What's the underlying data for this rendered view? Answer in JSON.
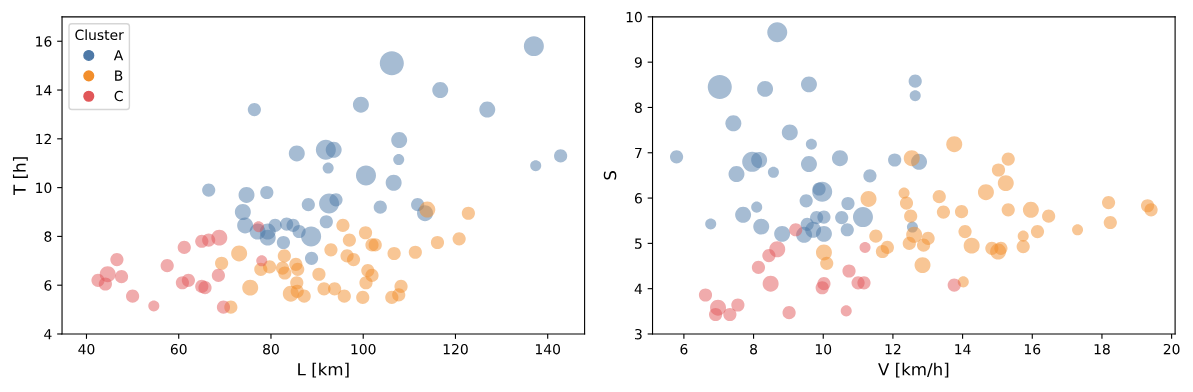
{
  "chart_data": [
    {
      "type": "bubble",
      "xlabel": "L [km]",
      "ylabel": "T [h]",
      "legend_title": "Cluster",
      "legend": "top left",
      "grid": false,
      "xlim": [
        34.7,
        148
      ],
      "xticks": [
        40,
        60,
        80,
        100,
        120,
        140
      ],
      "ylim": [
        4,
        17
      ],
      "yticks": [
        4,
        6,
        8,
        10,
        12,
        14,
        16
      ],
      "series": [
        {
          "name": "A",
          "color": "#4e79a7",
          "x": [
            137,
            106.2,
            116.7,
            126.9,
            99.5,
            76.4,
            107.8,
            91.9,
            93.6,
            85.6,
            92.4,
            107.7,
            142.8,
            137.4,
            100.6,
            106.6,
            66.5,
            79.1,
            74.7,
            73.9,
            74.4,
            77.1,
            79.3,
            79.3,
            80.9,
            83.4,
            84.8,
            86.1,
            88.7,
            82.7,
            88.8,
            88.1,
            92.6,
            94.1,
            103.7,
            111.8,
            113.4,
            92
          ],
          "values": [
            15.8,
            15.1,
            14.0,
            13.2,
            13.4,
            13.2,
            11.95,
            11.55,
            11.55,
            11.4,
            10.8,
            11.15,
            11.3,
            10.9,
            10.5,
            10.2,
            9.9,
            9.8,
            9.7,
            9.0,
            8.45,
            8.2,
            8.2,
            7.95,
            8.45,
            8.5,
            8.45,
            8.2,
            8.0,
            7.75,
            7.1,
            9.3,
            9.35,
            9.5,
            9.2,
            9.3,
            8.95,
            8.6
          ],
          "sizes": [
            0.69,
            1,
            0.44,
            0.44,
            0.44,
            0.3,
            0.44,
            0.69,
            0.44,
            0.44,
            0.21,
            0.21,
            0.3,
            0.21,
            0.69,
            0.44,
            0.3,
            0.3,
            0.44,
            0.44,
            0.44,
            0.44,
            0.44,
            0.44,
            0.3,
            0.3,
            0.3,
            0.3,
            0.69,
            0.3,
            0.3,
            0.3,
            0.69,
            0.3,
            0.3,
            0.3,
            0.44,
            0.3
          ]
        },
        {
          "name": "B",
          "color": "#f28e2b",
          "x": [
            71.3,
            69.3,
            73.1,
            75.5,
            77.8,
            79.7,
            82.9,
            82.5,
            83.0,
            85.4,
            85.8,
            85.6,
            84.3,
            85.7,
            87.2,
            90.4,
            91.5,
            93,
            95.6,
            97,
            96.5,
            97.9,
            100.5,
            101.9,
            102.6,
            106.7,
            111.3,
            116.1,
            120.8,
            122.8,
            113.9,
            101,
            101.9,
            100.6,
            108.2,
            107.7,
            106.2,
            99.9,
            95.9,
            93.8
          ],
          "values": [
            5.1,
            6.9,
            7.3,
            5.9,
            6.65,
            6.75,
            7.2,
            6.7,
            6.5,
            6.85,
            6.65,
            6.1,
            5.65,
            5.75,
            5.55,
            6.45,
            5.85,
            7.45,
            8.45,
            7.85,
            7.2,
            7.05,
            8.15,
            7.65,
            7.65,
            7.3,
            7.35,
            7.75,
            7.9,
            8.95,
            9.1,
            6.6,
            6.4,
            6.1,
            5.95,
            5.6,
            5.5,
            5.5,
            5.55,
            5.85
          ],
          "sizes": [
            0.3,
            0.3,
            0.44,
            0.44,
            0.3,
            0.3,
            0.3,
            0.3,
            0.3,
            0.3,
            0.3,
            0.3,
            0.44,
            0.3,
            0.3,
            0.3,
            0.3,
            0.3,
            0.3,
            0.3,
            0.3,
            0.3,
            0.3,
            0.3,
            0.3,
            0.3,
            0.3,
            0.3,
            0.3,
            0.3,
            0.44,
            0.3,
            0.3,
            0.3,
            0.3,
            0.3,
            0.3,
            0.3,
            0.3,
            0.3
          ]
        },
        {
          "name": "C",
          "color": "#e15759",
          "x": [
            46.6,
            42.5,
            44.1,
            44.6,
            47.6,
            50.0,
            54.6,
            57.5,
            61.2,
            60.8,
            62.1,
            65.0,
            66.5,
            68.8,
            65.0,
            65.7,
            68.6,
            69.7,
            78.0,
            77.3
          ],
          "values": [
            7.05,
            6.2,
            6.05,
            6.45,
            6.35,
            5.55,
            5.15,
            6.8,
            7.55,
            6.1,
            6.2,
            7.8,
            7.85,
            7.95,
            5.95,
            5.9,
            6.4,
            5.1,
            7.0,
            8.4
          ],
          "sizes": [
            0.3,
            0.3,
            0.3,
            0.44,
            0.3,
            0.3,
            0.21,
            0.3,
            0.3,
            0.3,
            0.3,
            0.3,
            0.3,
            0.44,
            0.3,
            0.3,
            0.3,
            0.3,
            0.21,
            0.21
          ]
        }
      ]
    },
    {
      "type": "bubble",
      "xlabel": "V [km/h]",
      "ylabel": "S",
      "grid": false,
      "xlim": [
        5.1,
        20.1
      ],
      "xticks": [
        6,
        8,
        10,
        12,
        14,
        16,
        18,
        20
      ],
      "ylim": [
        3,
        10
      ],
      "yticks": [
        3,
        4,
        5,
        6,
        7,
        8,
        9,
        10
      ],
      "series": [
        {
          "color": "#4e79a7",
          "x": [
            8.68,
            7.03,
            8.33,
            9.59,
            12.64,
            12.64,
            7.42,
            9.04,
            9.66,
            5.79,
            7.96,
            8.16,
            9.59,
            10.48,
            8.57,
            7.51,
            11.34,
            12.05,
            12.75,
            9.97,
            9.88,
            9.51,
            10.71,
            8.09,
            6.77,
            7.7,
            8.22,
            8.82,
            9.54,
            9.81,
            10.02,
            10.53,
            11.14,
            10.69,
            9.45,
            9.71,
            10.02,
            12.56
          ],
          "values": [
            9.66,
            8.45,
            8.41,
            8.51,
            8.58,
            8.26,
            7.65,
            7.45,
            7.19,
            6.91,
            6.8,
            6.84,
            6.75,
            6.88,
            6.57,
            6.53,
            6.49,
            6.84,
            6.8,
            6.14,
            6.2,
            5.94,
            5.88,
            5.8,
            5.43,
            5.63,
            5.37,
            5.21,
            5.42,
            5.57,
            5.58,
            5.57,
            5.58,
            5.3,
            5.19,
            5.3,
            5.21,
            5.36
          ],
          "sizes": [
            0.69,
            1,
            0.44,
            0.44,
            0.3,
            0.21,
            0.44,
            0.44,
            0.21,
            0.3,
            0.69,
            0.44,
            0.44,
            0.44,
            0.21,
            0.44,
            0.3,
            0.3,
            0.44,
            0.69,
            0.3,
            0.3,
            0.3,
            0.21,
            0.21,
            0.44,
            0.44,
            0.44,
            0.3,
            0.3,
            0.3,
            0.3,
            0.69,
            0.3,
            0.44,
            0.44,
            0.44,
            0.21
          ]
        },
        {
          "color": "#f28e2b",
          "x": [
            10.02,
            10.1,
            11.3,
            11.51,
            11.7,
            11.84,
            12.32,
            12.39,
            12.51,
            12.61,
            12.47,
            12.88,
            13.01,
            12.54,
            12.85,
            13.33,
            13.45,
            13.76,
            15.31,
            15.03,
            15.24,
            14.67,
            13.97,
            15.31,
            15.96,
            16.47,
            18.19,
            18.24,
            17.3,
            19.31,
            19.41,
            14.07,
            14.26,
            16.15,
            15.74,
            15.74,
            14.84,
            15.1,
            15.02,
            14.02
          ],
          "values": [
            4.8,
            4.56,
            5.98,
            5.16,
            4.82,
            4.91,
            6.11,
            5.89,
            5.6,
            5.19,
            5.0,
            4.96,
            5.11,
            6.88,
            4.52,
            6.03,
            5.69,
            7.19,
            6.86,
            6.62,
            6.33,
            6.13,
            5.7,
            5.74,
            5.74,
            5.6,
            5.9,
            5.46,
            5.3,
            5.83,
            5.74,
            5.26,
            4.95,
            5.26,
            5.16,
            4.93,
            4.89,
            4.89,
            4.82,
            4.15
          ],
          "sizes": [
            0.44,
            0.3,
            0.44,
            0.3,
            0.3,
            0.3,
            0.21,
            0.3,
            0.3,
            0.44,
            0.3,
            0.3,
            0.3,
            0.44,
            0.44,
            0.3,
            0.3,
            0.44,
            0.3,
            0.3,
            0.44,
            0.44,
            0.3,
            0.3,
            0.44,
            0.3,
            0.3,
            0.3,
            0.21,
            0.3,
            0.3,
            0.3,
            0.44,
            0.3,
            0.21,
            0.3,
            0.3,
            0.3,
            0.44,
            0.21
          ]
        },
        {
          "color": "#e15759",
          "x": [
            9.21,
            8.68,
            8.44,
            8.14,
            8.49,
            6.62,
            6.98,
            6.91,
            7.32,
            7.55,
            9.02,
            10.02,
            9.97,
            10.74,
            10.66,
            11.0,
            11.17,
            11.2,
            13.76
          ],
          "values": [
            5.3,
            4.87,
            4.73,
            4.47,
            4.11,
            3.86,
            3.58,
            3.43,
            3.43,
            3.64,
            3.47,
            4.11,
            4.02,
            4.39,
            3.51,
            4.13,
            4.13,
            4.91,
            4.08
          ],
          "sizes": [
            0.3,
            0.44,
            0.3,
            0.3,
            0.44,
            0.3,
            0.44,
            0.3,
            0.3,
            0.3,
            0.3,
            0.3,
            0.3,
            0.3,
            0.21,
            0.3,
            0.3,
            0.21,
            0.3
          ]
        }
      ]
    }
  ]
}
